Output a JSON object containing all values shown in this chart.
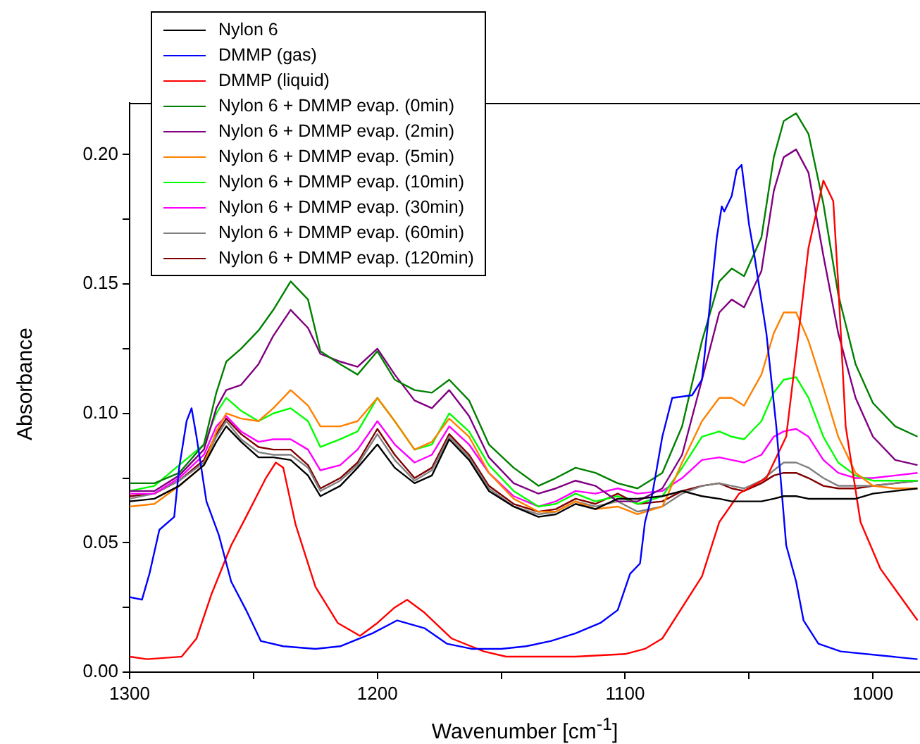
{
  "chart_data": {
    "type": "line",
    "xlabel": "Wavenumber [cm$^{-1}$]",
    "ylabel": "Absorbance",
    "legend": "top left",
    "grid": false,
    "xlim": [
      1300,
      981
    ],
    "xticks": [
      1300,
      {
        "value": 1250,
        "label": null
      },
      1200,
      {
        "value": 1150,
        "label": null
      },
      1100,
      {
        "value": 1050,
        "label": null
      },
      1000
    ],
    "ylim": [
      0,
      0.22
    ],
    "yticks": [
      {
        "value": 0,
        "label": "0.00"
      },
      {
        "value": 0.025,
        "label": null
      },
      {
        "value": 0.05,
        "label": "0.05"
      },
      {
        "value": 0.075,
        "label": null
      },
      {
        "value": 0.1,
        "label": "0.10"
      },
      {
        "value": 0.125,
        "label": null
      },
      {
        "value": 0.15,
        "label": "0.15"
      },
      {
        "value": 0.175,
        "label": null
      },
      {
        "value": 0.2,
        "label": "0.20"
      }
    ],
    "x": [
      1300,
      1290,
      1280,
      1270,
      1265,
      1261,
      1255,
      1248,
      1242,
      1235,
      1228,
      1223,
      1215,
      1208,
      1200,
      1193,
      1185,
      1178,
      1171,
      1163,
      1155,
      1145,
      1135,
      1128,
      1120,
      1112,
      1103,
      1095,
      1085,
      1077,
      1069,
      1062,
      1057,
      1052,
      1045,
      1040,
      1036,
      1031,
      1026,
      1020,
      1014,
      1007,
      1000,
      991,
      982
    ],
    "series": [
      {
        "name": "Nylon 6",
        "color": "#000000",
        "values": [
          0.066,
          0.067,
          0.072,
          0.08,
          0.089,
          0.095,
          0.089,
          0.083,
          0.083,
          0.082,
          0.076,
          0.068,
          0.072,
          0.079,
          0.088,
          0.079,
          0.073,
          0.076,
          0.09,
          0.082,
          0.07,
          0.064,
          0.06,
          0.061,
          0.065,
          0.063,
          0.067,
          0.067,
          0.068,
          0.07,
          0.068,
          0.067,
          0.066,
          0.066,
          0.066,
          0.067,
          0.068,
          0.068,
          0.067,
          0.067,
          0.067,
          0.067,
          0.069,
          0.07,
          0.071
        ]
      },
      {
        "name": "DMMP (gas)",
        "color": "#0000ff",
        "x": [
          1300,
          1295,
          1292,
          1288,
          1282,
          1280,
          1277,
          1275,
          1273,
          1269,
          1264,
          1259,
          1253,
          1247,
          1238,
          1225,
          1215,
          1202,
          1192,
          1181,
          1172,
          1162,
          1150,
          1140,
          1130,
          1120,
          1110,
          1103,
          1098,
          1094,
          1092,
          1089,
          1085,
          1081,
          1073,
          1069,
          1066,
          1063,
          1061,
          1060,
          1057,
          1055,
          1053,
          1050,
          1048,
          1043,
          1039,
          1035,
          1031,
          1028,
          1022,
          1013,
          982
        ],
        "values": [
          0.029,
          0.028,
          0.038,
          0.055,
          0.06,
          0.079,
          0.097,
          0.102,
          0.091,
          0.066,
          0.053,
          0.035,
          0.024,
          0.012,
          0.01,
          0.009,
          0.01,
          0.015,
          0.02,
          0.017,
          0.011,
          0.009,
          0.009,
          0.01,
          0.012,
          0.015,
          0.019,
          0.024,
          0.038,
          0.042,
          0.058,
          0.069,
          0.091,
          0.106,
          0.107,
          0.113,
          0.14,
          0.168,
          0.18,
          0.178,
          0.184,
          0.194,
          0.196,
          0.173,
          0.162,
          0.131,
          0.095,
          0.049,
          0.035,
          0.02,
          0.011,
          0.008,
          0.005
        ]
      },
      {
        "name": "DMMP (liquid)",
        "color": "#ff0000",
        "x": [
          1300,
          1293,
          1279,
          1273,
          1267,
          1259,
          1253,
          1245,
          1241,
          1238,
          1233,
          1225,
          1216,
          1207,
          1200,
          1193,
          1188,
          1181,
          1170,
          1157,
          1148,
          1120,
          1100,
          1092,
          1085,
          1069,
          1062,
          1054,
          1043,
          1035,
          1030,
          1026,
          1020,
          1016,
          1014,
          1011,
          1005,
          997,
          982
        ],
        "values": [
          0.006,
          0.005,
          0.006,
          0.013,
          0.03,
          0.049,
          0.06,
          0.075,
          0.081,
          0.079,
          0.057,
          0.033,
          0.019,
          0.014,
          0.019,
          0.025,
          0.028,
          0.023,
          0.013,
          0.008,
          0.006,
          0.006,
          0.007,
          0.009,
          0.013,
          0.037,
          0.058,
          0.069,
          0.075,
          0.091,
          0.131,
          0.164,
          0.19,
          0.182,
          0.15,
          0.095,
          0.058,
          0.04,
          0.02
        ]
      },
      {
        "name": "Nylon 6 + DMMP evap. (0min)",
        "color": "#008000",
        "values": [
          0.073,
          0.073,
          0.077,
          0.088,
          0.108,
          0.12,
          0.125,
          0.132,
          0.14,
          0.151,
          0.144,
          0.124,
          0.119,
          0.115,
          0.124,
          0.113,
          0.109,
          0.108,
          0.113,
          0.105,
          0.088,
          0.079,
          0.072,
          0.075,
          0.079,
          0.077,
          0.073,
          0.071,
          0.077,
          0.095,
          0.128,
          0.151,
          0.156,
          0.153,
          0.168,
          0.199,
          0.213,
          0.216,
          0.208,
          0.181,
          0.146,
          0.119,
          0.104,
          0.095,
          0.091
        ]
      },
      {
        "name": "Nylon 6 + DMMP evap. (2min)",
        "color": "#800080",
        "values": [
          0.07,
          0.07,
          0.076,
          0.086,
          0.102,
          0.109,
          0.111,
          0.119,
          0.13,
          0.14,
          0.133,
          0.123,
          0.12,
          0.118,
          0.125,
          0.115,
          0.105,
          0.102,
          0.109,
          0.099,
          0.083,
          0.073,
          0.069,
          0.071,
          0.074,
          0.072,
          0.066,
          0.066,
          0.071,
          0.084,
          0.113,
          0.139,
          0.144,
          0.141,
          0.155,
          0.186,
          0.199,
          0.202,
          0.193,
          0.161,
          0.131,
          0.106,
          0.091,
          0.082,
          0.08
        ]
      },
      {
        "name": "Nylon 6 + DMMP evap. (5min)",
        "color": "#ff8000",
        "values": [
          0.064,
          0.065,
          0.072,
          0.08,
          0.093,
          0.1,
          0.098,
          0.097,
          0.102,
          0.109,
          0.103,
          0.095,
          0.095,
          0.097,
          0.106,
          0.097,
          0.086,
          0.089,
          0.098,
          0.091,
          0.077,
          0.067,
          0.062,
          0.062,
          0.066,
          0.063,
          0.064,
          0.061,
          0.064,
          0.081,
          0.097,
          0.106,
          0.106,
          0.103,
          0.115,
          0.131,
          0.139,
          0.139,
          0.128,
          0.11,
          0.091,
          0.077,
          0.072,
          0.071,
          0.071
        ]
      },
      {
        "name": "Nylon 6 + DMMP evap. (10min)",
        "color": "#00ff00",
        "values": [
          0.07,
          0.072,
          0.08,
          0.088,
          0.1,
          0.106,
          0.101,
          0.097,
          0.1,
          0.102,
          0.097,
          0.087,
          0.09,
          0.093,
          0.106,
          0.097,
          0.086,
          0.088,
          0.1,
          0.093,
          0.08,
          0.07,
          0.064,
          0.065,
          0.069,
          0.066,
          0.068,
          0.065,
          0.068,
          0.079,
          0.091,
          0.093,
          0.091,
          0.09,
          0.097,
          0.108,
          0.113,
          0.114,
          0.106,
          0.091,
          0.081,
          0.076,
          0.074,
          0.074,
          0.074
        ]
      },
      {
        "name": "Nylon 6 + DMMP evap. (30min)",
        "color": "#ff00ff",
        "values": [
          0.069,
          0.069,
          0.075,
          0.084,
          0.095,
          0.099,
          0.093,
          0.089,
          0.09,
          0.09,
          0.086,
          0.078,
          0.08,
          0.086,
          0.097,
          0.088,
          0.081,
          0.084,
          0.095,
          0.088,
          0.077,
          0.068,
          0.064,
          0.066,
          0.07,
          0.069,
          0.071,
          0.069,
          0.07,
          0.075,
          0.082,
          0.083,
          0.082,
          0.081,
          0.084,
          0.091,
          0.093,
          0.094,
          0.091,
          0.082,
          0.077,
          0.075,
          0.075,
          0.076,
          0.077
        ]
      },
      {
        "name": "Nylon 6 + DMMP evap. (60min)",
        "color": "#808080",
        "values": [
          0.067,
          0.069,
          0.074,
          0.081,
          0.091,
          0.097,
          0.09,
          0.085,
          0.084,
          0.084,
          0.079,
          0.07,
          0.074,
          0.08,
          0.092,
          0.082,
          0.074,
          0.078,
          0.091,
          0.083,
          0.071,
          0.064,
          0.061,
          0.062,
          0.066,
          0.064,
          0.066,
          0.062,
          0.064,
          0.069,
          0.072,
          0.073,
          0.072,
          0.071,
          0.074,
          0.078,
          0.081,
          0.081,
          0.079,
          0.075,
          0.072,
          0.072,
          0.072,
          0.073,
          0.074
        ]
      },
      {
        "name": "Nylon 6 + DMMP evap. (120min)",
        "color": "#800000",
        "values": [
          0.068,
          0.069,
          0.074,
          0.082,
          0.092,
          0.098,
          0.092,
          0.087,
          0.086,
          0.086,
          0.08,
          0.071,
          0.075,
          0.081,
          0.094,
          0.084,
          0.075,
          0.079,
          0.092,
          0.084,
          0.072,
          0.065,
          0.062,
          0.063,
          0.067,
          0.065,
          0.069,
          0.065,
          0.066,
          0.07,
          0.072,
          0.073,
          0.071,
          0.07,
          0.073,
          0.076,
          0.077,
          0.077,
          0.075,
          0.072,
          0.071,
          0.071,
          0.072,
          0.073,
          0.074
        ]
      }
    ]
  }
}
